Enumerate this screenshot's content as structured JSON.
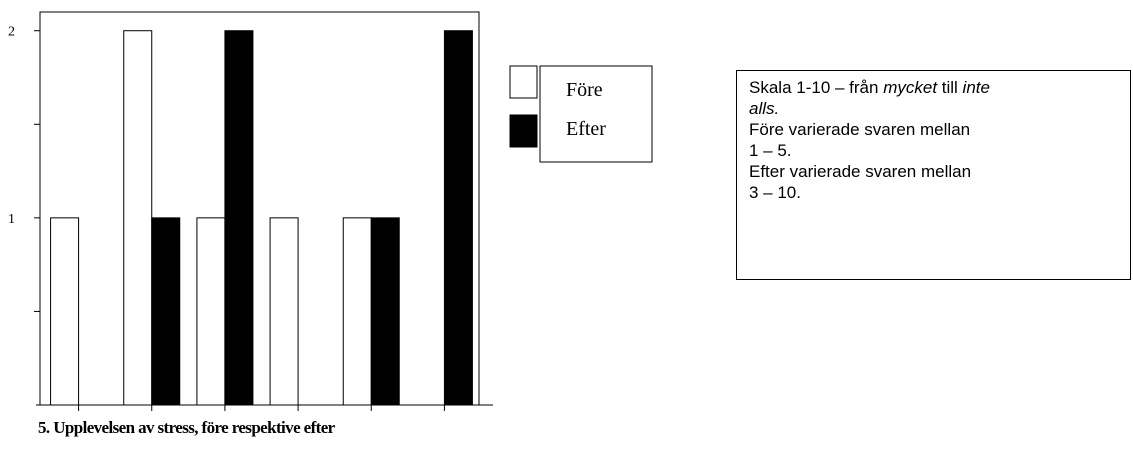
{
  "chart_data": {
    "type": "bar",
    "categories": [
      "",
      "",
      "",
      "",
      "",
      ""
    ],
    "series": [
      {
        "name": "Före",
        "values": [
          1,
          2,
          1,
          1,
          1,
          0
        ],
        "fill": "#ffffff"
      },
      {
        "name": "Efter",
        "values": [
          0,
          1,
          2,
          0,
          1,
          2
        ],
        "fill": "#000000"
      }
    ],
    "yticks": [
      1,
      2
    ],
    "ylim": [
      0,
      2.1
    ],
    "title": "5. Upplevelsen av stress, före respektive efter",
    "xlabel": "",
    "ylabel": "",
    "legend": "right",
    "grid": false
  },
  "note": {
    "line1_pre": "Skala 1-10 – från ",
    "line1_em1": "mycket",
    "line1_mid": " till ",
    "line1_em2": "inte",
    "line2_em": "alls.",
    "line3": "Före varierade svaren mellan",
    "line4": "1 – 5.",
    "line5": "Efter varierade svaren mellan",
    "line6": "3 – 10."
  }
}
